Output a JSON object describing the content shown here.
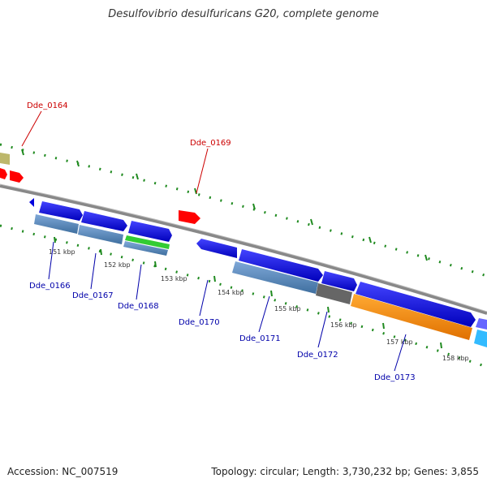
{
  "header": {
    "title": "Desulfovibrio desulfuricans G20, complete genome"
  },
  "footer": {
    "accession": "Accession: NC_007519",
    "summary": "Topology: circular; Length: 3,730,232 bp; Genes: 3,855"
  },
  "colors": {
    "backbone": "#8a8a8a",
    "tick_green": "#1f8a1f",
    "label_red": "#cc0000",
    "label_blue": "#0000aa",
    "gene_blue": "#0000dd",
    "gene_red": "#ff0000",
    "gene_khaki": "#bdb76b",
    "feature_steel": "#5b8fc8",
    "feature_green": "#33cc33",
    "feature_orange": "#ff8c00",
    "feature_gray": "#666666",
    "feature_cyan": "#33bbff"
  },
  "scale_labels": [
    "151 kbp",
    "152 kbp",
    "153 kbp",
    "154 kbp",
    "155 kbp",
    "156 kbp",
    "157 kbp",
    "158 kbp"
  ],
  "gene_labels": [
    {
      "id": "Dde_0164",
      "color": "red"
    },
    {
      "id": "Dde_0169",
      "color": "red"
    },
    {
      "id": "Dde_0166",
      "color": "blue"
    },
    {
      "id": "Dde_0167",
      "color": "blue"
    },
    {
      "id": "Dde_0168",
      "color": "blue"
    },
    {
      "id": "Dde_0170",
      "color": "blue"
    },
    {
      "id": "Dde_0171",
      "color": "blue"
    },
    {
      "id": "Dde_0172",
      "color": "blue"
    },
    {
      "id": "Dde_0173",
      "color": "blue"
    }
  ]
}
